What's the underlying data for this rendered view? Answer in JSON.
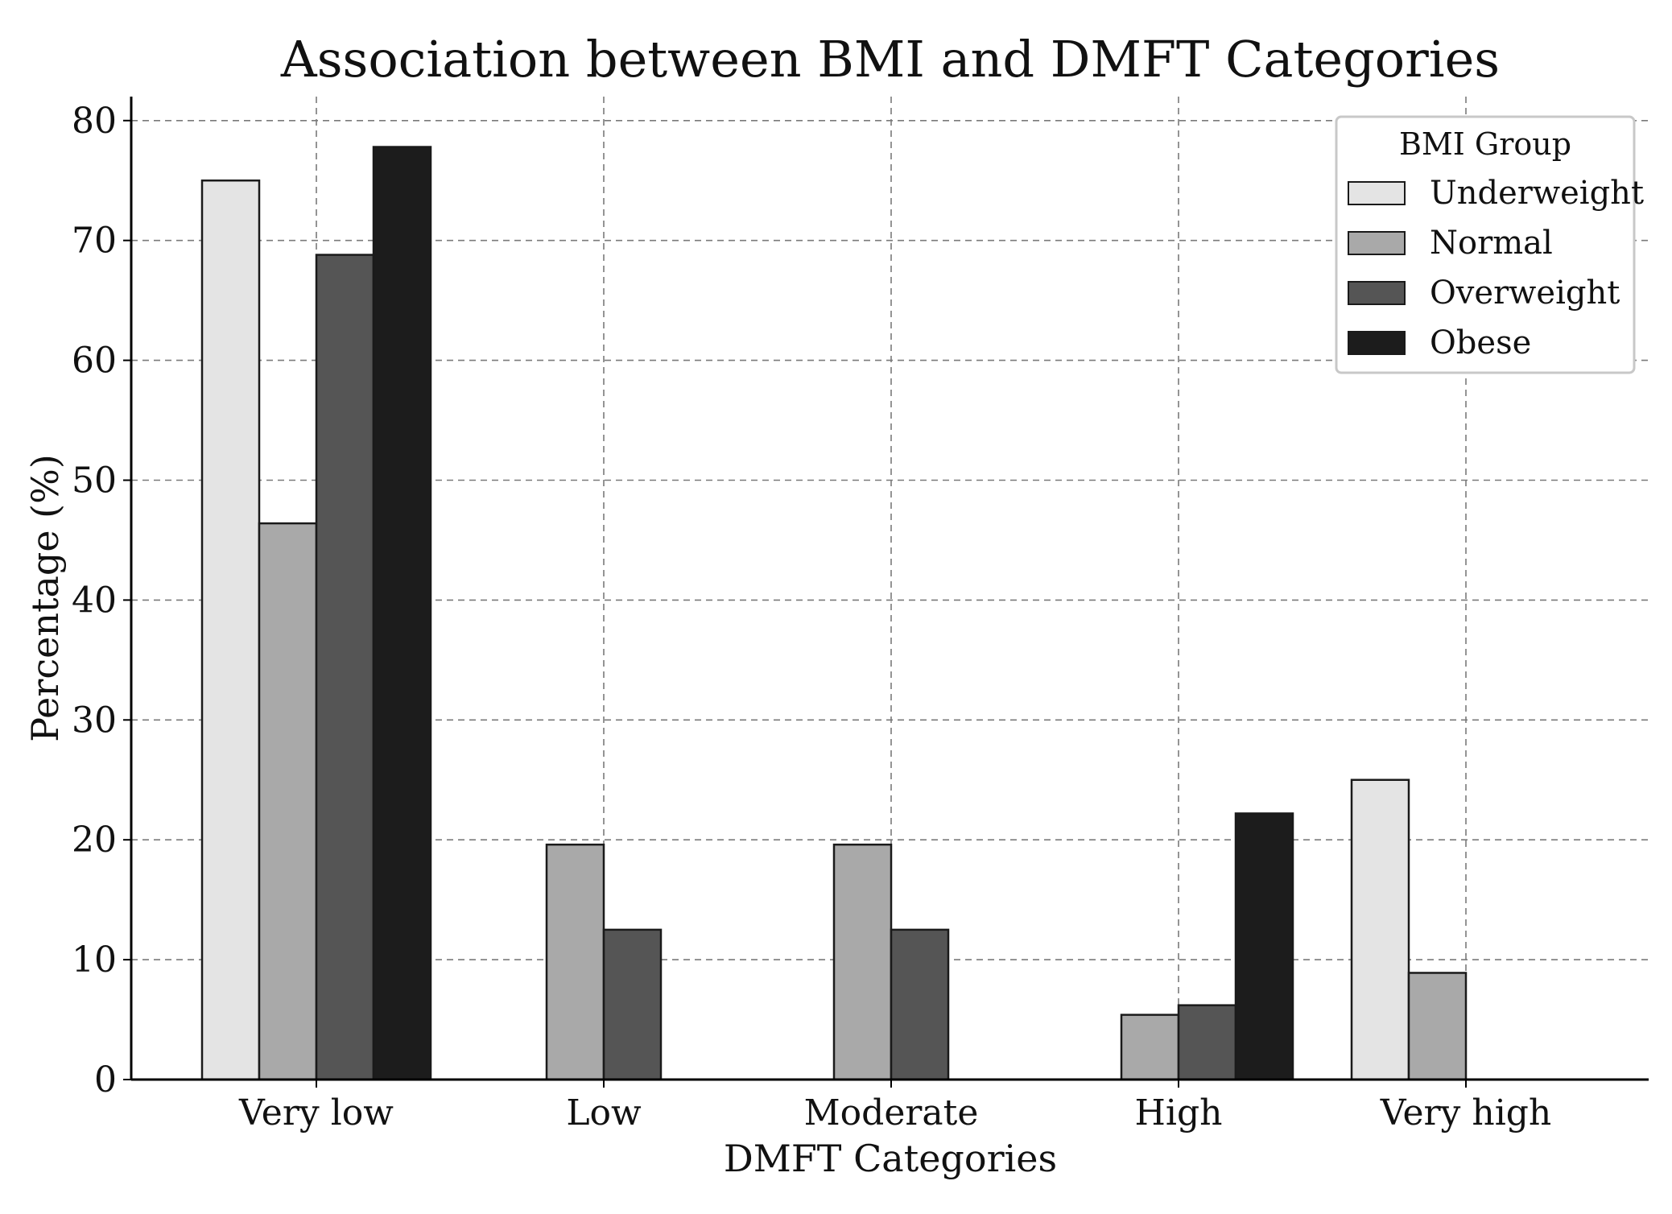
{
  "chart_data": {
    "type": "bar",
    "title": "Association between BMI and DMFT Categories",
    "xlabel": "DMFT Categories",
    "ylabel": "Percentage (%)",
    "ylim": [
      0,
      82
    ],
    "yticks": [
      0,
      10,
      20,
      30,
      40,
      50,
      60,
      70,
      80
    ],
    "grid": true,
    "categories": [
      "Very low",
      "Low",
      "Moderate",
      "High",
      "Very high"
    ],
    "legend": {
      "title": "BMI Group",
      "placement": "top-right"
    },
    "series": [
      {
        "name": "Underweight",
        "color": "#e4e4e4",
        "values": [
          75.0,
          0,
          0,
          0,
          25.0
        ]
      },
      {
        "name": "Normal",
        "color": "#a9a9a9",
        "values": [
          46.4,
          19.6,
          19.6,
          5.4,
          8.9
        ]
      },
      {
        "name": "Overweight",
        "color": "#555555",
        "values": [
          68.8,
          12.5,
          12.5,
          6.2,
          0
        ]
      },
      {
        "name": "Obese",
        "color": "#1c1c1c",
        "values": [
          77.8,
          0,
          0,
          22.2,
          0
        ]
      }
    ]
  }
}
